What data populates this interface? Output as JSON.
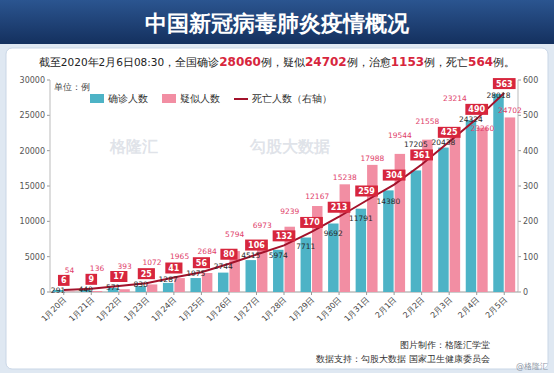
{
  "chart_data": {
    "type": "bar",
    "title": "中国新冠病毒肺炎疫情概况",
    "subtitle": "截至2020年2月6日08:30，全国确诊28060例，疑似24702例，治愈1153例，死亡564例。",
    "y_label": "单位：例",
    "annotations": [
      "图片制作：格隆汇学堂",
      "数据支持：勾股大数据 国家卫生健康委员会",
      "@格隆汇",
      "格隆汇",
      "勾股大数据"
    ],
    "categories": [
      "1月20日",
      "1月21日",
      "1月22日",
      "1月23日",
      "1月24日",
      "1月25日",
      "1月26日",
      "1月27日",
      "1月28日",
      "1月29日",
      "1月30日",
      "1月31日",
      "2月1日",
      "2月2日",
      "2月3日",
      "2月4日",
      "2月5日"
    ],
    "series": [
      {
        "name": "确诊人数",
        "type": "bar",
        "color": "#4db3c6",
        "values": [
          291,
          440,
          571,
          830,
          1287,
          1975,
          2744,
          4515,
          5974,
          7711,
          9692,
          11791,
          14380,
          17205,
          20438,
          24324,
          28018
        ]
      },
      {
        "name": "疑似人数",
        "type": "bar",
        "color": "#f28ea3",
        "values": [
          54,
          136,
          393,
          1072,
          1965,
          2684,
          5794,
          6973,
          9239,
          12167,
          15238,
          17988,
          19544,
          21558,
          23214,
          23260,
          24702
        ]
      },
      {
        "name": "死亡人数（右轴）",
        "type": "line",
        "axis": "y2",
        "color": "#a3122b",
        "values": [
          6,
          9,
          17,
          25,
          41,
          56,
          80,
          106,
          132,
          170,
          213,
          259,
          304,
          361,
          425,
          490,
          563
        ]
      }
    ],
    "ylim": [
      0,
      30000
    ],
    "yticks": [
      0,
      5000,
      10000,
      15000,
      20000,
      25000,
      30000
    ],
    "y2lim": [
      0,
      600
    ],
    "y2ticks": [
      0,
      100,
      200,
      300,
      400,
      500,
      600
    ],
    "grid": false,
    "legend": "top-left",
    "data_labels": true
  }
}
